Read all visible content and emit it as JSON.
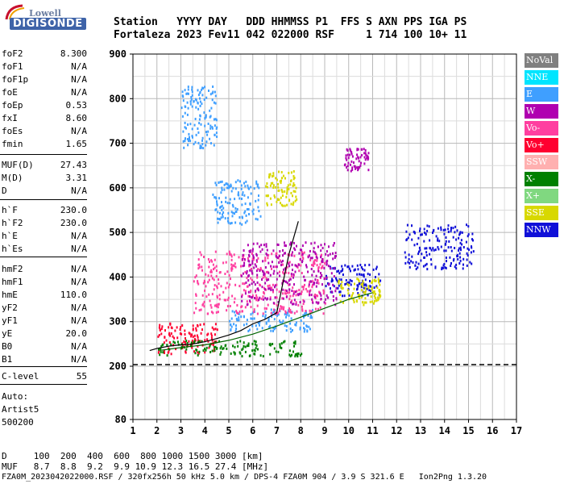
{
  "logo": {
    "brand_top": "Lowell",
    "brand_main": "DIGISONDE"
  },
  "header": {
    "row1": "Station   YYYY DAY   DDD HHMMSS P1  FFS S AXN PPS IGA PS",
    "row2": "Fortaleza 2023 Fev11 042 022000 RSF     1 714 100 10+ 11"
  },
  "params_group1": [
    {
      "name": "foF2",
      "value": "8.300"
    },
    {
      "name": "foF1",
      "value": "N/A"
    },
    {
      "name": "foF1p",
      "value": "N/A"
    },
    {
      "name": "foE",
      "value": "N/A"
    },
    {
      "name": "foEp",
      "value": "0.53"
    },
    {
      "name": "fxI",
      "value": "8.60"
    },
    {
      "name": "foEs",
      "value": "N/A"
    },
    {
      "name": "fmin",
      "value": "1.65"
    }
  ],
  "params_group2": [
    {
      "name": "MUF(D)",
      "value": "27.43"
    },
    {
      "name": "M(D)",
      "value": "3.31"
    },
    {
      "name": "D",
      "value": "N/A"
    }
  ],
  "params_group3": [
    {
      "name": "h`F",
      "value": "230.0"
    },
    {
      "name": "h`F2",
      "value": "230.0"
    },
    {
      "name": "h`E",
      "value": "N/A"
    },
    {
      "name": "h`Es",
      "value": "N/A"
    }
  ],
  "params_group4": [
    {
      "name": "hmF2",
      "value": "N/A"
    },
    {
      "name": "hmF1",
      "value": "N/A"
    },
    {
      "name": "hmE",
      "value": "110.0"
    },
    {
      "name": "yF2",
      "value": "N/A"
    },
    {
      "name": "yF1",
      "value": "N/A"
    },
    {
      "name": "yE",
      "value": "20.0"
    },
    {
      "name": "B0",
      "value": "N/A"
    },
    {
      "name": "B1",
      "value": "N/A"
    }
  ],
  "params_group5": [
    {
      "name": "C-level",
      "value": "55"
    }
  ],
  "autoscaling": {
    "line1": "Auto:",
    "line2": "Artist5",
    "line3": "500200"
  },
  "legend": [
    {
      "label": "NoVal",
      "color": "#808080"
    },
    {
      "label": "NNE",
      "color": "#00e5ff"
    },
    {
      "label": "E",
      "color": "#3f9fff"
    },
    {
      "label": "W",
      "color": "#b000b0"
    },
    {
      "label": "Vo-",
      "color": "#ff3fa0"
    },
    {
      "label": "Vo+",
      "color": "#ff0030"
    },
    {
      "label": "SSW",
      "color": "#ffb0b0"
    },
    {
      "label": "X-",
      "color": "#008000"
    },
    {
      "label": "X+",
      "color": "#80d880"
    },
    {
      "label": "SSE",
      "color": "#d8d800"
    },
    {
      "label": "NNW",
      "color": "#1010d8"
    }
  ],
  "bottom": {
    "line1": "D     100  200  400  600  800 1000 1500 3000 [km]",
    "line2": "MUF   8.7  8.8  9.2  9.9 10.9 12.3 16.5 27.4 [MHz]",
    "line3": "FZA0M_2023042022000.RSF / 320fx256h 50 kHz 5.0 km / DPS-4 FZA0M 904 / 3.9 S 321.6 E   Ion2Png 1.3.20"
  },
  "chart_data": {
    "type": "scatter",
    "xlim": [
      1,
      17
    ],
    "ylim": [
      80,
      900
    ],
    "x_ticks": [
      "1",
      "2",
      "3",
      "4",
      "5",
      "6",
      "7",
      "8",
      "9",
      "10",
      "11",
      "12",
      "13",
      "14",
      "15",
      "16",
      "17"
    ],
    "y_ticks": [
      "80",
      "200",
      "300",
      "400",
      "500",
      "600",
      "700",
      "800",
      "900"
    ],
    "grid": true,
    "legend_position": "right",
    "xlabel": "",
    "ylabel": "",
    "traces": [
      {
        "name": "h'F trace (black)",
        "points": [
          [
            1.7,
            235
          ],
          [
            2.0,
            240
          ],
          [
            2.5,
            245
          ],
          [
            3.0,
            248
          ],
          [
            3.5,
            250
          ],
          [
            4.0,
            255
          ],
          [
            4.5,
            262
          ],
          [
            5.0,
            270
          ],
          [
            5.5,
            280
          ],
          [
            6.0,
            295
          ],
          [
            6.5,
            305
          ],
          [
            7.0,
            320
          ],
          [
            7.5,
            450
          ],
          [
            7.9,
            525
          ]
        ]
      },
      {
        "name": "overlay (green)",
        "points": [
          [
            2.2,
            236
          ],
          [
            3.0,
            242
          ],
          [
            4.0,
            248
          ],
          [
            5.0,
            258
          ],
          [
            6.0,
            272
          ],
          [
            7.0,
            290
          ],
          [
            8.0,
            310
          ],
          [
            9.0,
            330
          ],
          [
            10.0,
            350
          ],
          [
            11.0,
            365
          ]
        ]
      }
    ],
    "clusters": [
      {
        "series": "NNW",
        "x": [
          9.0,
          11.3
        ],
        "y": [
          360,
          430
        ]
      },
      {
        "series": "NNW",
        "x": [
          12.3,
          15.2
        ],
        "y": [
          420,
          520
        ]
      },
      {
        "series": "E",
        "x": [
          5.0,
          8.5
        ],
        "y": [
          280,
          330
        ]
      },
      {
        "series": "Vo+",
        "x": [
          2.0,
          4.5
        ],
        "y": [
          230,
          300
        ]
      },
      {
        "series": "Vo-",
        "x": [
          3.5,
          9.0
        ],
        "y": [
          320,
          460
        ]
      },
      {
        "series": "W",
        "x": [
          5.5,
          9.5
        ],
        "y": [
          340,
          480
        ]
      },
      {
        "series": "SSE",
        "x": [
          9.5,
          11.3
        ],
        "y": [
          340,
          400
        ]
      },
      {
        "series": "X-",
        "x": [
          2.0,
          8.0
        ],
        "y": [
          225,
          260
        ]
      },
      {
        "series": "E",
        "x": [
          3.0,
          4.5
        ],
        "y": [
          690,
          830
        ]
      },
      {
        "series": "E",
        "x": [
          4.3,
          6.3
        ],
        "y": [
          520,
          620
        ]
      },
      {
        "series": "W",
        "x": [
          9.8,
          10.8
        ],
        "y": [
          640,
          690
        ]
      },
      {
        "series": "SSE",
        "x": [
          6.5,
          7.8
        ],
        "y": [
          560,
          640
        ]
      }
    ]
  }
}
